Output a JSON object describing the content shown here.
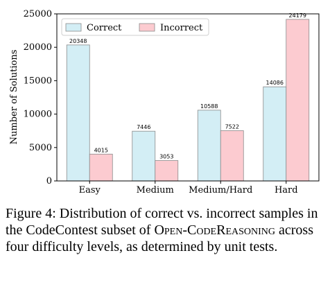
{
  "chart_data": {
    "type": "bar",
    "categories": [
      "Easy",
      "Medium",
      "Medium/Hard",
      "Hard"
    ],
    "series": [
      {
        "name": "Correct",
        "values": [
          20348,
          7446,
          10588,
          14086
        ],
        "color": "#d3eef5"
      },
      {
        "name": "Incorrect",
        "values": [
          4015,
          3053,
          7522,
          24179
        ],
        "color": "#fccbd0"
      }
    ],
    "ylabel": "Number of Solutions",
    "ylim": [
      0,
      25000
    ],
    "yticks": [
      0,
      5000,
      10000,
      15000,
      20000,
      25000
    ],
    "legend_position": "top-left",
    "grid": false
  },
  "caption": {
    "label": "Figure 4:",
    "text_before": " Distribution of correct vs. incorrect samples in the CodeContest subset of ",
    "smallcaps": "Open-CodeReasoning",
    "text_after": " across four difficulty levels, as determined by unit tests."
  }
}
